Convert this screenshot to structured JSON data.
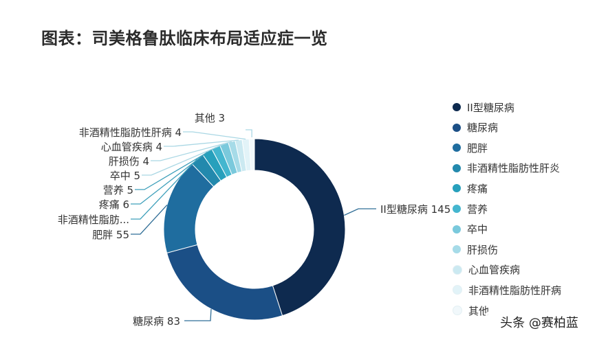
{
  "title": "图表：司美格鲁肽临床布局适应症一览",
  "watermark": "头条 @赛柏蓝",
  "chart_data": {
    "type": "pie",
    "donut": true,
    "legend_placement": "right",
    "categories": [
      "II型糖尿病",
      "糖尿病",
      "肥胖",
      "非酒精性脂肪性肝炎",
      "疼痛",
      "营养",
      "卒中",
      "肝损伤",
      "心血管疾病",
      "非酒精性脂肪性肝病",
      "其他"
    ],
    "values": [
      145,
      83,
      55,
      8,
      6,
      5,
      5,
      4,
      4,
      4,
      3
    ],
    "data_labels": [
      "II型糖尿病 145",
      "糖尿病 83",
      "肥胖 55",
      "非酒精性脂肪...",
      "疼痛 6",
      "营养 5",
      "卒中 5",
      "肝损伤 4",
      "心血管疾病 4",
      "非酒精性脂肪性肝病 4",
      "其他 3"
    ],
    "colors": [
      "#0e2a4f",
      "#1b4f86",
      "#1f6d9f",
      "#2389ad",
      "#27a0bc",
      "#44b6cf",
      "#7ac9dc",
      "#a6dbe8",
      "#cbe9f1",
      "#e2f3f8",
      "#f1f8fb"
    ]
  }
}
